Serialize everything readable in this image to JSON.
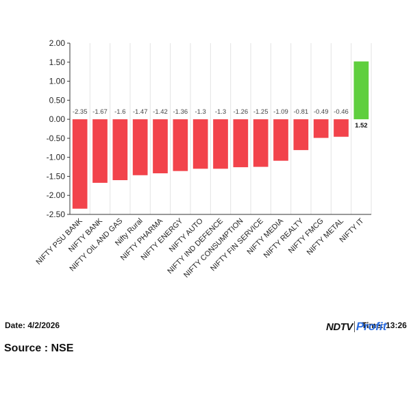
{
  "chart_data": {
    "type": "bar",
    "categories": [
      "NIFTY PSU BANK",
      "NIFTY BANK",
      "NIFTY OIL AND GAS",
      "Nifty Rural",
      "NIFTY PHARMA",
      "NIFTY ENERGY",
      "NIFTY AUTO",
      "NIFTY IND DEFENCE",
      "NIFTY CONSUMPTION",
      "NIFTY FIN SERVICE",
      "NIFTY MEDIA",
      "NIFTY REALTY",
      "NIFTY FMCG",
      "NIFTY METAL",
      "NIFTY IT"
    ],
    "values": [
      -2.35,
      -1.67,
      -1.6,
      -1.47,
      -1.42,
      -1.36,
      -1.3,
      -1.3,
      -1.26,
      -1.25,
      -1.09,
      -0.81,
      -0.49,
      -0.46,
      1.52
    ],
    "data_labels": [
      "-2.35",
      "-1.67",
      "-1.6",
      "-1.47",
      "-1.42",
      "-1.36",
      "-1.3",
      "-1.3",
      "-1.26",
      "-1.25",
      "-1.09",
      "-0.81",
      "-0.49",
      "-0.46",
      "1.52"
    ],
    "yticks": [
      "2.00",
      "1.50",
      "1.00",
      "0.50",
      "0.00",
      "-0.50",
      "-1.00",
      "-1.50",
      "-2.00",
      "-2.50"
    ],
    "ylim": [
      -2.5,
      2.0
    ],
    "grid": "vertical",
    "colors": {
      "negative": "#f2434b",
      "positive": "#5fcf3e",
      "grid": "#e3e3e3",
      "axis": "#333333"
    }
  },
  "footer": {
    "date": "Date: 4/2/2026",
    "time": "Time: 13:26",
    "source": "Source : NSE",
    "brand_ndtv": "NDTV",
    "brand_profit": "Profit"
  }
}
